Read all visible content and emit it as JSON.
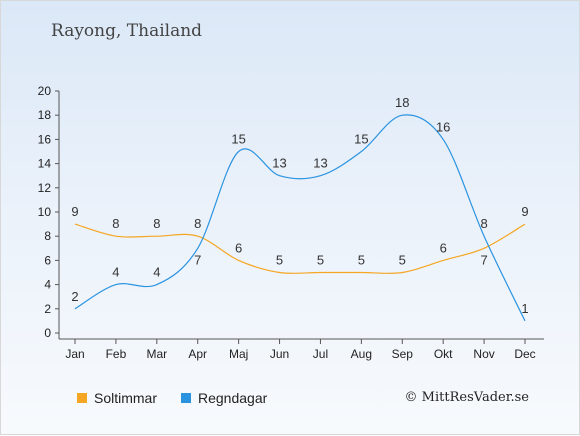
{
  "title": "Rayong, Thailand",
  "credit": "© MittResVader.se",
  "colors": {
    "sun": "#f5a623",
    "rain": "#2a93e0"
  },
  "chart_data": {
    "type": "line",
    "categories": [
      "Jan",
      "Feb",
      "Mar",
      "Apr",
      "Maj",
      "Jun",
      "Jul",
      "Aug",
      "Sep",
      "Okt",
      "Nov",
      "Dec"
    ],
    "ylim": [
      0,
      20
    ],
    "yticks": [
      0,
      2,
      4,
      6,
      8,
      10,
      12,
      14,
      16,
      18,
      20
    ],
    "series": [
      {
        "name": "Soltimmar",
        "values": [
          9,
          8,
          8,
          8,
          6,
          5,
          5,
          5,
          5,
          6,
          7,
          9
        ]
      },
      {
        "name": "Regndagar",
        "values": [
          2,
          4,
          4,
          7,
          15,
          13,
          13,
          15,
          18,
          16,
          8,
          1
        ]
      }
    ],
    "legend_position": "bottom"
  }
}
